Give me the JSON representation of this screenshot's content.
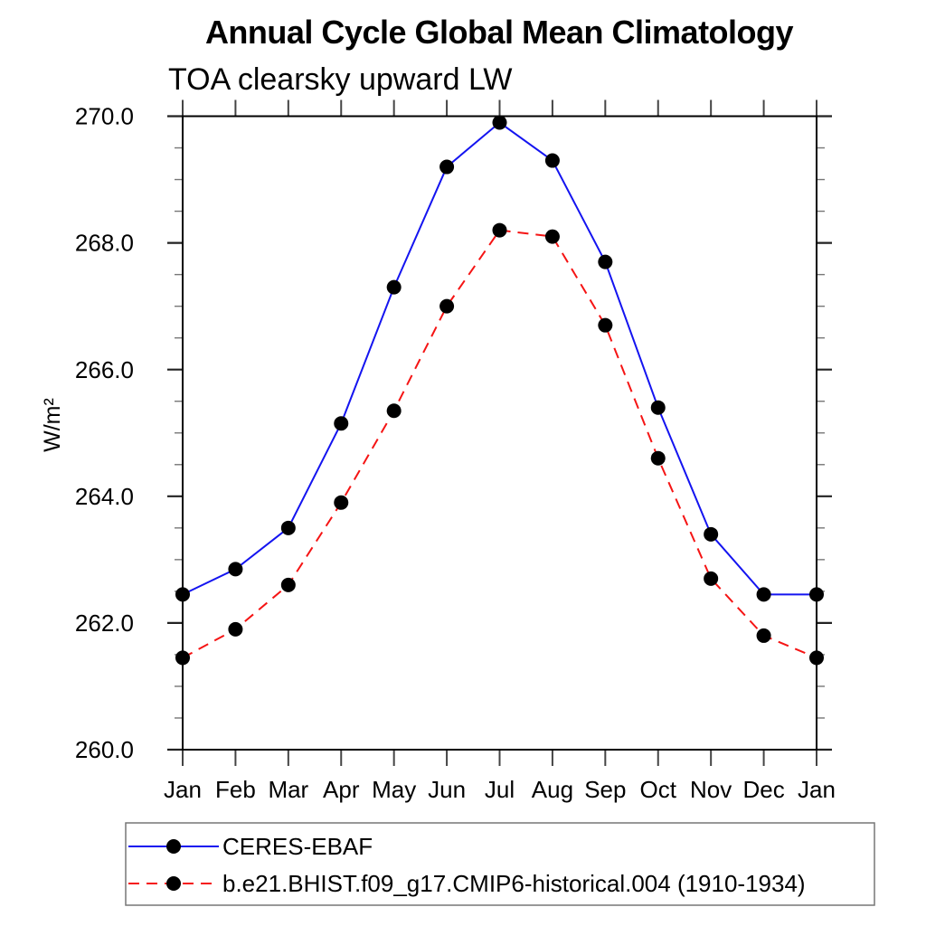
{
  "title": "Annual Cycle Global Mean Climatology",
  "subtitle": "TOA clearsky upward LW",
  "chart_data": {
    "type": "line",
    "title": "Annual Cycle Global Mean Climatology",
    "subtitle": "TOA clearsky upward LW",
    "ylabel": "W/m²",
    "xlabel": "",
    "x": [
      "Jan",
      "Feb",
      "Mar",
      "Apr",
      "May",
      "Jun",
      "Jul",
      "Aug",
      "Sep",
      "Oct",
      "Nov",
      "Dec",
      "Jan"
    ],
    "ylim": [
      260.0,
      270.0
    ],
    "ytick_step": 2.0,
    "yminor_step": 0.5,
    "ytick_labels": [
      "260.0",
      "262.0",
      "264.0",
      "266.0",
      "268.0",
      "270.0"
    ],
    "grid": false,
    "legend_position": "bottom-left-box",
    "series": [
      {
        "name": "CERES-EBAF",
        "line_color": "#1414f0",
        "line_style": "solid",
        "marker": "filled-circle",
        "marker_color": "#000000",
        "values": [
          262.45,
          262.85,
          263.5,
          265.15,
          267.3,
          269.2,
          269.9,
          269.3,
          267.7,
          265.4,
          263.4,
          262.45,
          262.45
        ]
      },
      {
        "name": "b.e21.BHIST.f09_g17.CMIP6-historical.004 (1910-1934)",
        "line_color": "#f51414",
        "line_style": "dashed",
        "marker": "filled-circle",
        "marker_color": "#000000",
        "values": [
          261.45,
          261.9,
          262.6,
          263.9,
          265.35,
          267.0,
          268.2,
          268.1,
          266.7,
          264.6,
          262.7,
          261.8,
          261.45
        ]
      }
    ]
  }
}
